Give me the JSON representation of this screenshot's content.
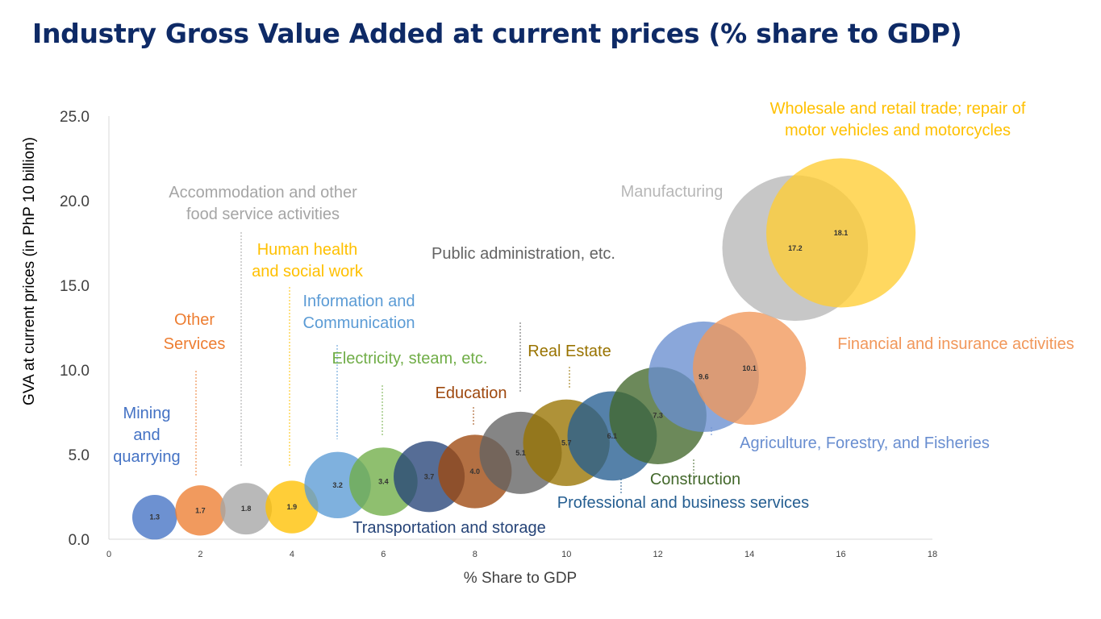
{
  "title": "Industry Gross Value Added at current prices (% share to GDP)",
  "chart_data": {
    "type": "scatter",
    "title": "Industry Gross Value Added at current prices (% share to GDP)",
    "xlabel": "% Share to GDP",
    "ylabel": "GVA at current prices (in PhP 10 billion)",
    "xlim": [
      0,
      18
    ],
    "ylim": [
      0,
      25
    ],
    "x_ticks": [
      "0",
      "2",
      "4",
      "6",
      "8",
      "10",
      "12",
      "14",
      "16",
      "18"
    ],
    "y_ticks": [
      "0.0",
      "5.0",
      "10.0",
      "15.0",
      "20.0",
      "25.0"
    ],
    "grid": false,
    "legend": "none",
    "points": [
      {
        "label": "Mining and quarrying",
        "x": 1,
        "y": 1.3,
        "value_label": "1.3",
        "color": "#4472c4"
      },
      {
        "label": "Other Services",
        "x": 2,
        "y": 1.7,
        "value_label": "1.7",
        "color": "#ed7d31"
      },
      {
        "label": "Accommodation and other food service activities",
        "x": 3,
        "y": 1.8,
        "value_label": "1.8",
        "color": "#a5a5a5"
      },
      {
        "label": "Human health and social work",
        "x": 4,
        "y": 1.9,
        "value_label": "1.9",
        "color": "#ffc000"
      },
      {
        "label": "Information and Communication",
        "x": 5,
        "y": 3.2,
        "value_label": "3.2",
        "color": "#5b9bd5"
      },
      {
        "label": "Electricity, steam, etc.",
        "x": 6,
        "y": 3.4,
        "value_label": "3.4",
        "color": "#70ad47"
      },
      {
        "label": "Transportation and storage",
        "x": 7,
        "y": 3.7,
        "value_label": "3.7",
        "color": "#264478"
      },
      {
        "label": "Education",
        "x": 8,
        "y": 4.0,
        "value_label": "4.0",
        "color": "#9e480e"
      },
      {
        "label": "Public administration, etc.",
        "x": 9,
        "y": 5.1,
        "value_label": "5.1",
        "color": "#636363"
      },
      {
        "label": "Real Estate",
        "x": 10,
        "y": 5.7,
        "value_label": "5.7",
        "color": "#997300"
      },
      {
        "label": "Professional and business services",
        "x": 11,
        "y": 6.1,
        "value_label": "6.1",
        "color": "#255e91"
      },
      {
        "label": "Construction",
        "x": 12,
        "y": 7.3,
        "value_label": "7.3",
        "color": "#43682b"
      },
      {
        "label": "Agriculture, Forestry, and Fisheries",
        "x": 13,
        "y": 9.6,
        "value_label": "9.6",
        "color": "#698ed0"
      },
      {
        "label": "Financial and insurance activities",
        "x": 14,
        "y": 10.1,
        "value_label": "10.1",
        "color": "#f1975a"
      },
      {
        "label": "Manufacturing",
        "x": 15,
        "y": 17.2,
        "value_label": "17.2",
        "color": "#b7b7b7"
      },
      {
        "label": "Wholesale and retail trade; repair of motor vehicles and motorcycles",
        "x": 16,
        "y": 18.1,
        "value_label": "18.1",
        "color": "#ffcd33"
      }
    ]
  },
  "annotations": {
    "mining": [
      "Mining",
      "and",
      "quarrying"
    ],
    "other_services": [
      "Other",
      "Services"
    ],
    "accommodation": [
      "Accommodation and other",
      "food service activities"
    ],
    "human_health": [
      "Human health",
      "and social work"
    ],
    "information": [
      "Information and",
      "Communication"
    ],
    "electricity": [
      "Electricity, steam, etc."
    ],
    "education": [
      "Education"
    ],
    "public_admin": [
      "Public administration, etc."
    ],
    "real_estate": [
      "Real Estate"
    ],
    "manufacturing": [
      "Manufacturing"
    ],
    "wholesale": [
      "Wholesale and retail trade; repair of",
      "motor vehicles and motorcycles"
    ],
    "financial": [
      "Financial and insurance activities"
    ],
    "agriculture": [
      "Agriculture, Forestry, and Fisheries"
    ],
    "construction": [
      "Construction"
    ],
    "professional": [
      "Professional and business services"
    ],
    "transportation": [
      "Transportation and storage"
    ]
  }
}
